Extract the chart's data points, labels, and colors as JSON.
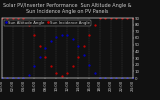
{
  "title": "Solar PV/Inverter Performance  Sun Altitude Angle & Sun Incidence Angle on PV Panels",
  "legend_labels": [
    "Sun Altitude Angle",
    "Sun Incidence Angle"
  ],
  "line_colors": [
    "#0000cc",
    "#cc0000"
  ],
  "background_color": "#111111",
  "plot_bg_color": "#111111",
  "grid_color": "#555555",
  "text_color": "#cccccc",
  "x_values": [
    0,
    1,
    2,
    3,
    4,
    5,
    6,
    7,
    8,
    9,
    10,
    11,
    12,
    13,
    14,
    15,
    16,
    17,
    18,
    19,
    20,
    21,
    22,
    23,
    24
  ],
  "altitude_values": [
    0,
    0,
    0,
    0,
    0,
    5,
    18,
    32,
    45,
    55,
    62,
    65,
    64,
    58,
    48,
    35,
    20,
    7,
    0,
    0,
    0,
    0,
    0,
    0,
    0
  ],
  "incidence_values": [
    90,
    90,
    90,
    90,
    90,
    80,
    65,
    48,
    32,
    18,
    8,
    3,
    8,
    18,
    32,
    48,
    65,
    80,
    90,
    90,
    90,
    90,
    90,
    90,
    90
  ],
  "x_tick_labels": [
    "00:00",
    "02:00",
    "04:00",
    "06:00",
    "08:00",
    "10:00",
    "12:00",
    "14:00",
    "16:00",
    "18:00",
    "20:00",
    "22:00",
    "24:00"
  ],
  "x_tick_positions": [
    0,
    2,
    4,
    6,
    8,
    10,
    12,
    14,
    16,
    18,
    20,
    22,
    24
  ],
  "y_right_ticks": [
    0,
    10,
    20,
    30,
    40,
    50,
    60,
    70,
    80,
    90
  ],
  "ylim": [
    0,
    90
  ],
  "xlim": [
    0,
    24
  ],
  "markersize": 1.2,
  "title_fontsize": 3.5,
  "tick_fontsize": 2.8,
  "legend_fontsize": 2.8
}
